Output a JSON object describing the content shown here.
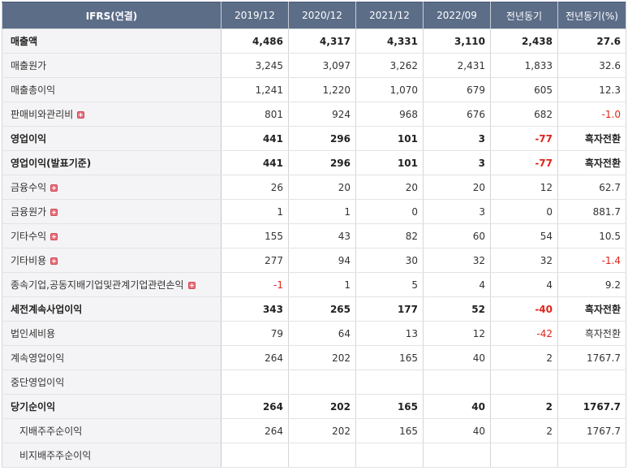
{
  "table": {
    "headers": [
      "IFRS(연결)",
      "2019/12",
      "2020/12",
      "2021/12",
      "2022/09",
      "전년동기",
      "전년동기(%)"
    ],
    "rows": [
      {
        "label": "매출액",
        "bold": true,
        "indent": false,
        "expand": false,
        "values": [
          "4,486",
          "4,317",
          "4,331",
          "3,110",
          "2,438",
          "27.6"
        ],
        "negative": [
          false,
          false,
          false,
          false,
          false,
          false
        ]
      },
      {
        "label": "매출원가",
        "bold": false,
        "indent": false,
        "expand": false,
        "values": [
          "3,245",
          "3,097",
          "3,262",
          "2,431",
          "1,833",
          "32.6"
        ],
        "negative": [
          false,
          false,
          false,
          false,
          false,
          false
        ]
      },
      {
        "label": "매출총이익",
        "bold": false,
        "indent": false,
        "expand": false,
        "values": [
          "1,241",
          "1,220",
          "1,070",
          "679",
          "605",
          "12.3"
        ],
        "negative": [
          false,
          false,
          false,
          false,
          false,
          false
        ]
      },
      {
        "label": "판매비와관리비",
        "bold": false,
        "indent": false,
        "expand": true,
        "values": [
          "801",
          "924",
          "968",
          "676",
          "682",
          "-1.0"
        ],
        "negative": [
          false,
          false,
          false,
          false,
          false,
          true
        ]
      },
      {
        "label": "영업이익",
        "bold": true,
        "indent": false,
        "expand": false,
        "values": [
          "441",
          "296",
          "101",
          "3",
          "-77",
          "흑자전환"
        ],
        "negative": [
          false,
          false,
          false,
          false,
          true,
          false
        ]
      },
      {
        "label": "영업이익(발표기준)",
        "bold": true,
        "indent": false,
        "expand": false,
        "values": [
          "441",
          "296",
          "101",
          "3",
          "-77",
          "흑자전환"
        ],
        "negative": [
          false,
          false,
          false,
          false,
          true,
          false
        ]
      },
      {
        "label": "금융수익",
        "bold": false,
        "indent": false,
        "expand": true,
        "values": [
          "26",
          "20",
          "20",
          "20",
          "12",
          "62.7"
        ],
        "negative": [
          false,
          false,
          false,
          false,
          false,
          false
        ]
      },
      {
        "label": "금융원가",
        "bold": false,
        "indent": false,
        "expand": true,
        "values": [
          "1",
          "1",
          "0",
          "3",
          "0",
          "881.7"
        ],
        "negative": [
          false,
          false,
          false,
          false,
          false,
          false
        ]
      },
      {
        "label": "기타수익",
        "bold": false,
        "indent": false,
        "expand": true,
        "values": [
          "155",
          "43",
          "82",
          "60",
          "54",
          "10.5"
        ],
        "negative": [
          false,
          false,
          false,
          false,
          false,
          false
        ]
      },
      {
        "label": "기타비용",
        "bold": false,
        "indent": false,
        "expand": true,
        "values": [
          "277",
          "94",
          "30",
          "32",
          "32",
          "-1.4"
        ],
        "negative": [
          false,
          false,
          false,
          false,
          false,
          true
        ]
      },
      {
        "label": "종속기업,공동지배기업및관계기업관련손익",
        "bold": false,
        "indent": false,
        "expand": true,
        "values": [
          "-1",
          "1",
          "5",
          "4",
          "4",
          "9.2"
        ],
        "negative": [
          true,
          false,
          false,
          false,
          false,
          false
        ]
      },
      {
        "label": "세전계속사업이익",
        "bold": true,
        "indent": false,
        "expand": false,
        "values": [
          "343",
          "265",
          "177",
          "52",
          "-40",
          "흑자전환"
        ],
        "negative": [
          false,
          false,
          false,
          false,
          true,
          false
        ]
      },
      {
        "label": "법인세비용",
        "bold": false,
        "indent": false,
        "expand": false,
        "values": [
          "79",
          "64",
          "13",
          "12",
          "-42",
          "흑자전환"
        ],
        "negative": [
          false,
          false,
          false,
          false,
          true,
          false
        ]
      },
      {
        "label": "계속영업이익",
        "bold": false,
        "indent": false,
        "expand": false,
        "values": [
          "264",
          "202",
          "165",
          "40",
          "2",
          "1767.7"
        ],
        "negative": [
          false,
          false,
          false,
          false,
          false,
          false
        ]
      },
      {
        "label": "중단영업이익",
        "bold": false,
        "indent": false,
        "expand": false,
        "values": [
          "",
          "",
          "",
          "",
          "",
          ""
        ],
        "negative": [
          false,
          false,
          false,
          false,
          false,
          false
        ]
      },
      {
        "label": "당기순이익",
        "bold": true,
        "indent": false,
        "expand": false,
        "values": [
          "264",
          "202",
          "165",
          "40",
          "2",
          "1767.7"
        ],
        "negative": [
          false,
          false,
          false,
          false,
          false,
          false
        ]
      },
      {
        "label": "지배주주순이익",
        "bold": false,
        "indent": true,
        "expand": false,
        "values": [
          "264",
          "202",
          "165",
          "40",
          "2",
          "1767.7"
        ],
        "negative": [
          false,
          false,
          false,
          false,
          false,
          false
        ]
      },
      {
        "label": "비지배주주순이익",
        "bold": false,
        "indent": true,
        "expand": false,
        "values": [
          "",
          "",
          "",
          "",
          "",
          ""
        ],
        "negative": [
          false,
          false,
          false,
          false,
          false,
          false
        ]
      }
    ]
  },
  "colors": {
    "header_bg": "#5c6d88",
    "label_bg": "#f4f4f6",
    "negative": "#e0231a",
    "expand_icon": "#e8707c"
  },
  "icons": {
    "expand": "plus-expand-icon"
  }
}
